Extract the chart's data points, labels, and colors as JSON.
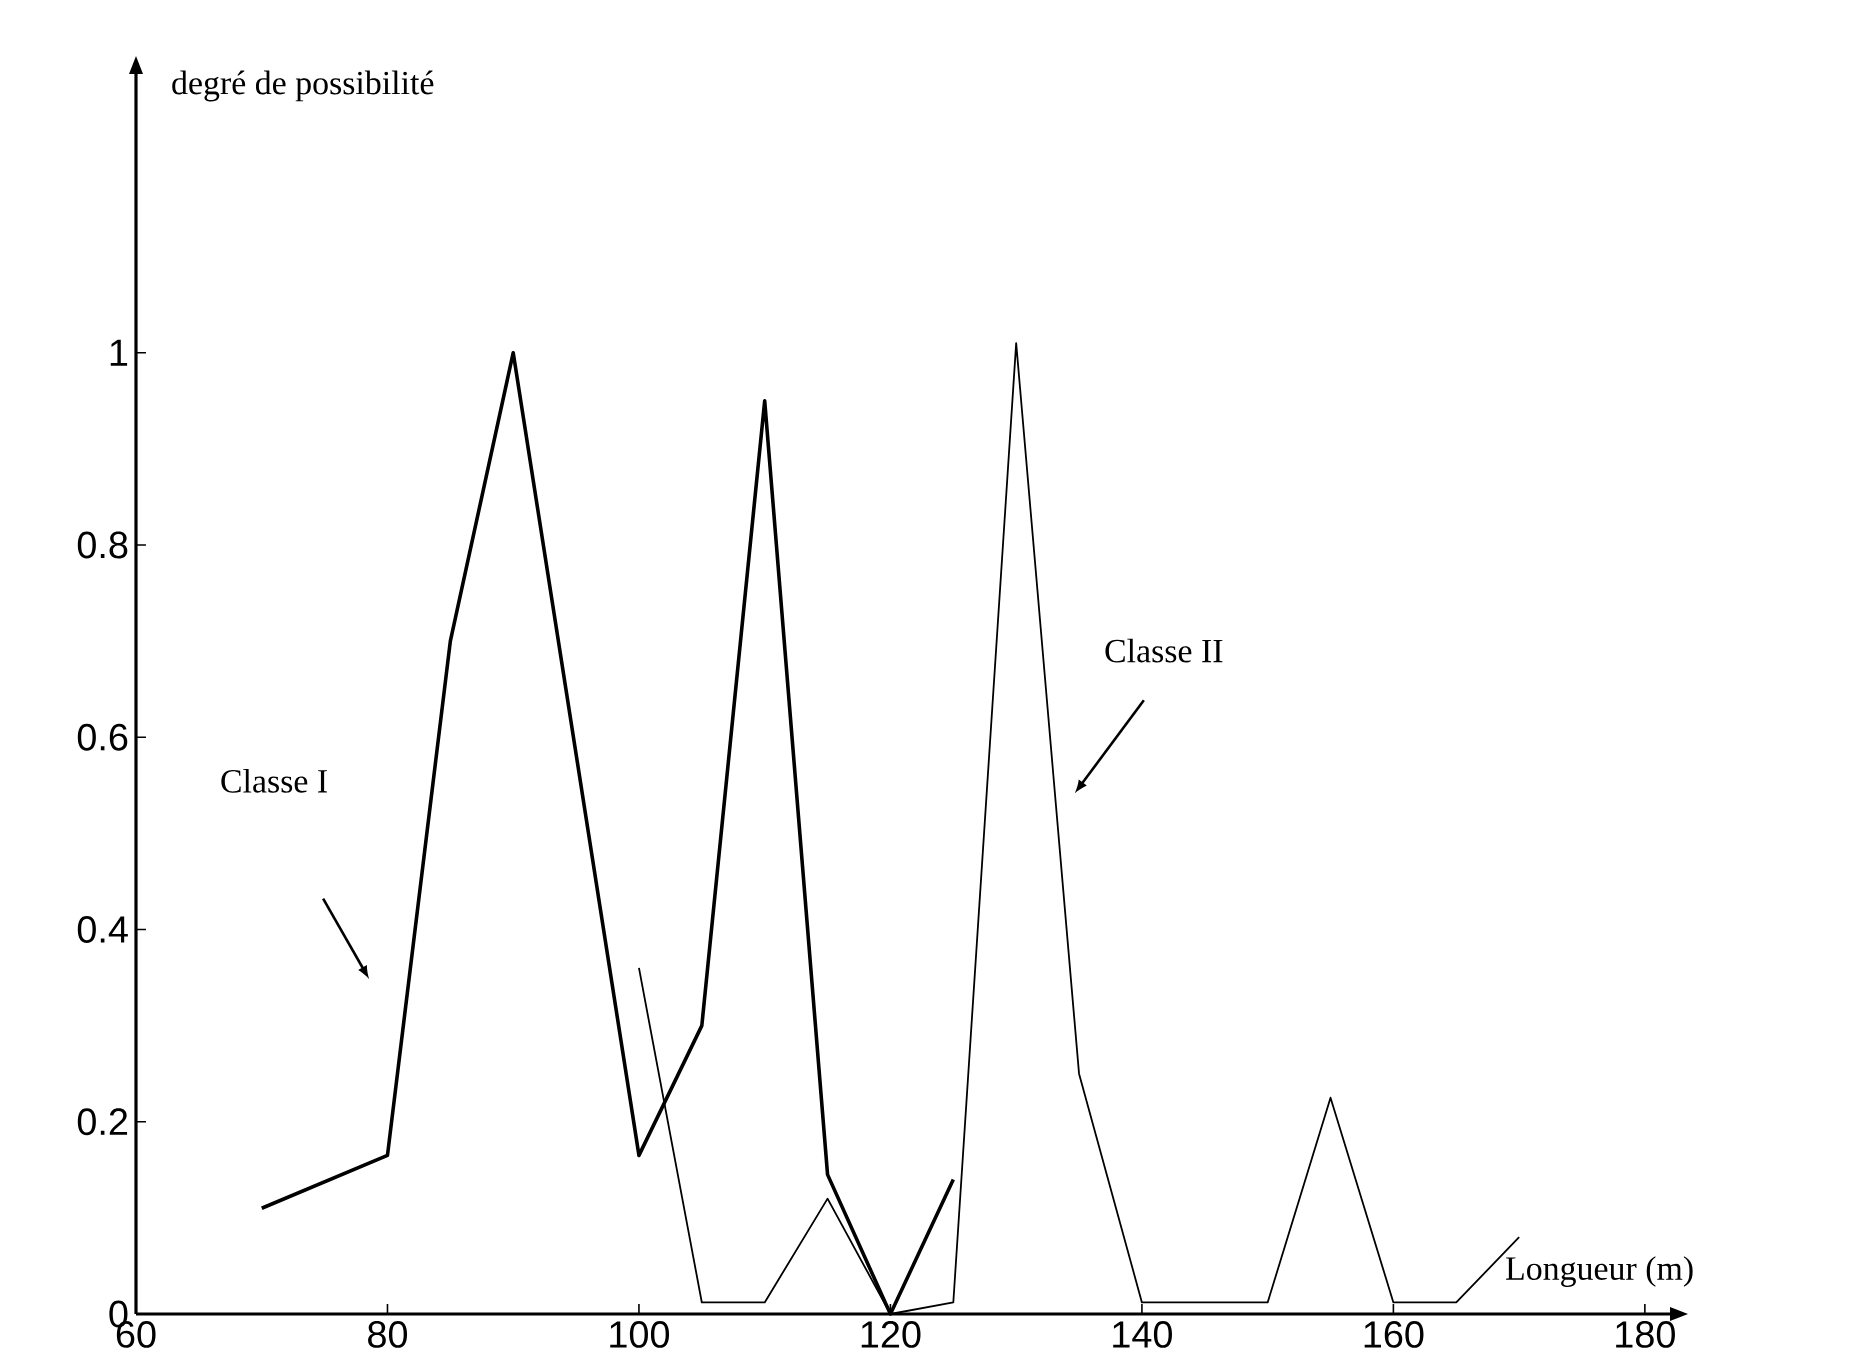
{
  "chart_data": {
    "type": "line",
    "xlabel": "Longueur (m)",
    "ylabel": "degré de possibilité",
    "xlim": [
      60,
      182
    ],
    "ylim": [
      0,
      1.29
    ],
    "xticks": [
      60,
      80,
      100,
      120,
      140,
      160,
      180
    ],
    "yticks": [
      0,
      0.2,
      0.4,
      0.6,
      0.8,
      1
    ],
    "grid": false,
    "marker": "none",
    "line_style": "solid",
    "series": [
      {
        "color": "#000000",
        "x": [
          70,
          80,
          85,
          90,
          100,
          105,
          110,
          115,
          120,
          125
        ],
        "values": [
          0.11,
          0.165,
          0.7,
          1.0,
          0.165,
          0.3,
          0.95,
          0.145,
          0.0,
          0.14
        ]
      },
      {
        "color": "#000000",
        "x": [
          100,
          105,
          110,
          115,
          120,
          125,
          130,
          135,
          140,
          145,
          150,
          155,
          160,
          165,
          170
        ],
        "values": [
          0.36,
          0.012,
          0.012,
          0.12,
          0.0,
          0.012,
          1.01,
          0.25,
          0.012,
          0.012,
          0.012,
          0.225,
          0.012,
          0.012,
          0.08
        ]
      }
    ],
    "annotations": [
      "Classe I",
      "Classe II"
    ]
  }
}
